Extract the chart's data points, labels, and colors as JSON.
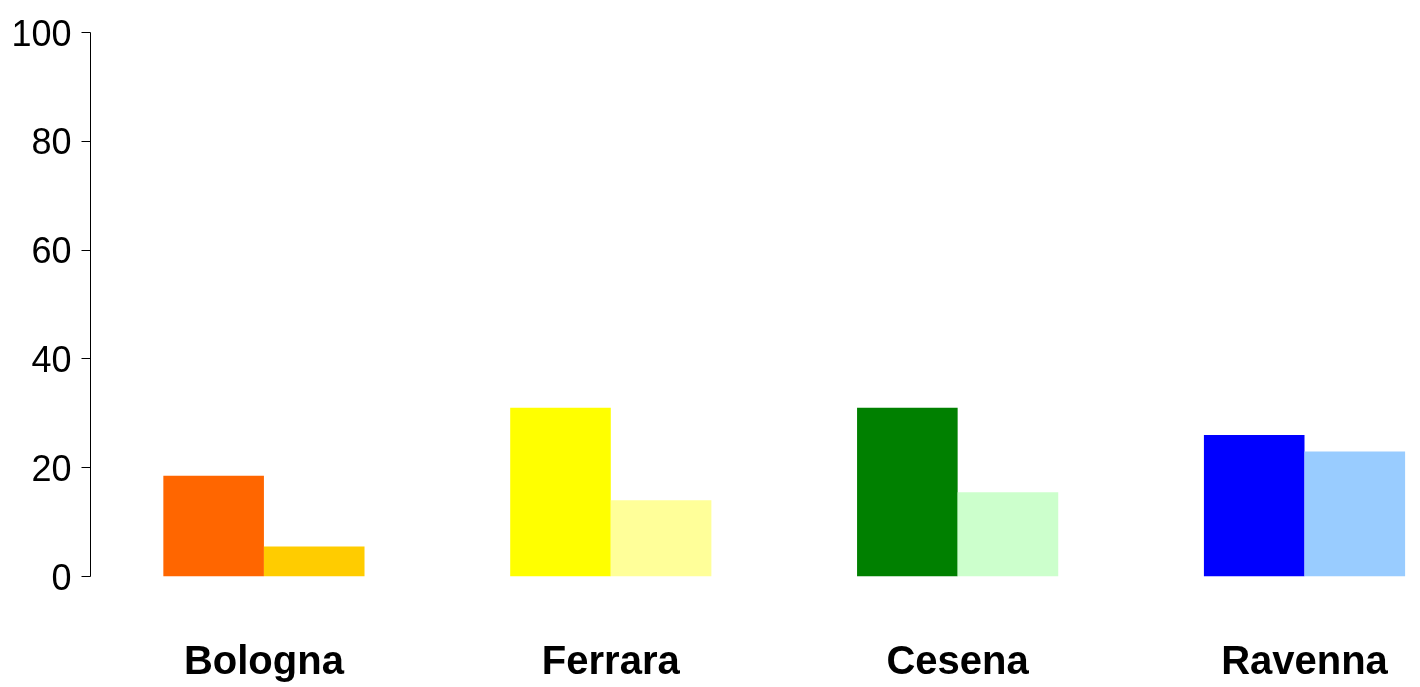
{
  "chart_data": {
    "type": "bar",
    "categories": [
      "Bologna",
      "Ferrara",
      "Cesena",
      "Ravenna"
    ],
    "series": [
      {
        "colors": [
          "#ff6600",
          "#ffff00",
          "#008000",
          "#0000ff"
        ],
        "values": [
          18.5,
          31,
          31,
          26
        ]
      },
      {
        "colors": [
          "#ffcc00",
          "#ffff99",
          "#ccffcc",
          "#99ccff"
        ],
        "values": [
          5.5,
          14,
          15.5,
          23
        ]
      }
    ],
    "ylim": [
      0,
      100
    ],
    "yticks": [
      0,
      20,
      40,
      60,
      80,
      100
    ]
  }
}
